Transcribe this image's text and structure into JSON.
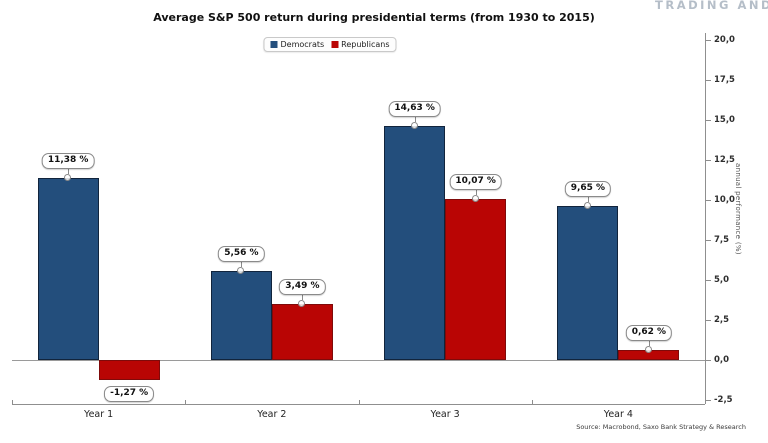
{
  "header": {
    "watermark": "TRADING AND INV"
  },
  "source": "Source: Macrobond, Saxo Bank Strategy & Research",
  "chart_data": {
    "type": "bar",
    "title": "Average S&P 500 return during presidential terms (from 1930 to 2015)",
    "categories": [
      "Year 1",
      "Year 2",
      "Year 3",
      "Year 4"
    ],
    "series": [
      {
        "name": "Democrats",
        "color": "#234e7c",
        "border_color": "#11243c",
        "values": [
          11.38,
          5.56,
          14.63,
          9.65
        ],
        "labels": [
          "11,38 %",
          "5,56 %",
          "14,63 %",
          "9,65 %"
        ]
      },
      {
        "name": "Republicans",
        "color": "#b90504",
        "border_color": "#7f0a0a",
        "values": [
          -1.27,
          3.49,
          10.07,
          0.62
        ],
        "labels": [
          "-1,27 %",
          "3,49 %",
          "10,07 %",
          "0,62 %"
        ]
      }
    ],
    "xlabel": "",
    "ylabel": "annual performance (%)",
    "y_ticks": [
      {
        "value": 20.0,
        "label": "20,0"
      },
      {
        "value": 17.5,
        "label": "17,5"
      },
      {
        "value": 15.0,
        "label": "15,0"
      },
      {
        "value": 12.5,
        "label": "12,5"
      },
      {
        "value": 10.0,
        "label": "10,0"
      },
      {
        "value": 7.5,
        "label": "7,5"
      },
      {
        "value": 5.0,
        "label": "5,0"
      },
      {
        "value": 2.5,
        "label": "2,5"
      },
      {
        "value": 0.0,
        "label": "0,0"
      },
      {
        "value": -2.5,
        "label": "-2,5"
      }
    ],
    "ylim": [
      -2.75,
      20.25
    ],
    "grid": false,
    "legend_position": "top-center",
    "axis_color": "#8c8c8c"
  }
}
